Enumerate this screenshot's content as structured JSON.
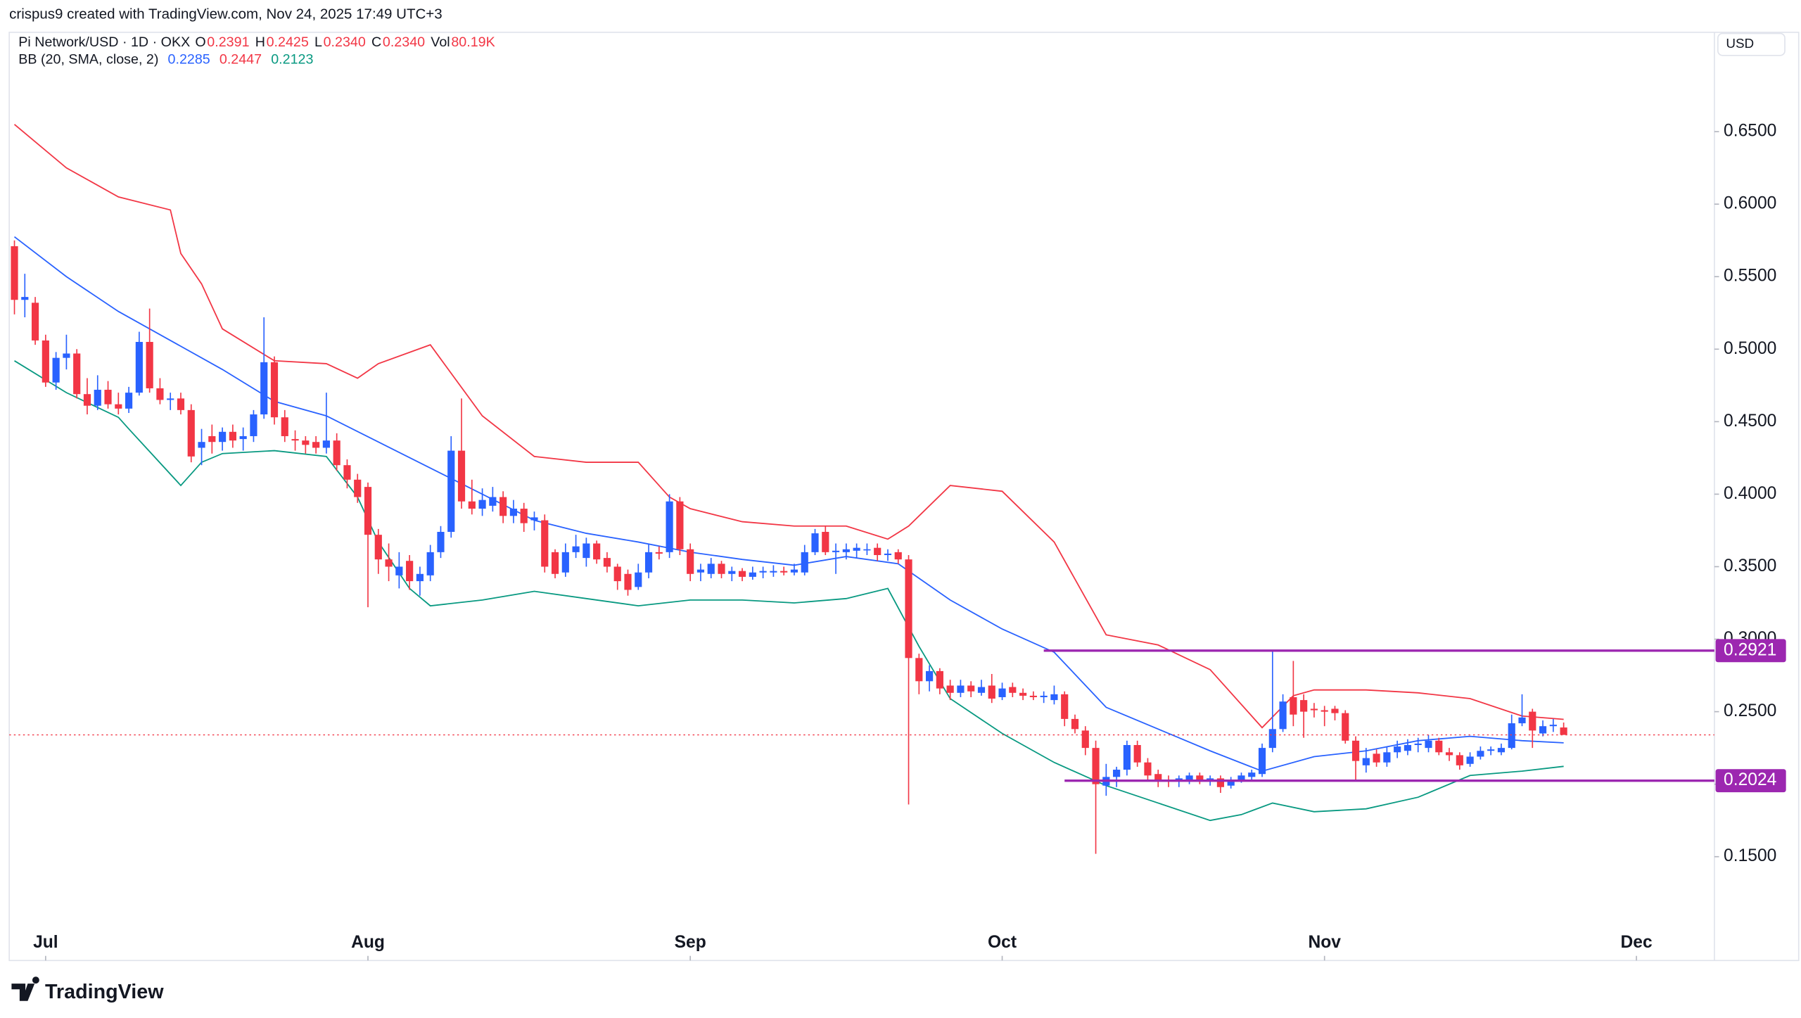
{
  "header": {
    "credit": "crispus9 created with TradingView.com, Nov 24, 2025 17:49 UTC+3",
    "symbol": "Pi Network/USD · 1D · OKX",
    "ohlc": [
      {
        "label": "O",
        "value": "0.2391"
      },
      {
        "label": "H",
        "value": "0.2425"
      },
      {
        "label": "L",
        "value": "0.2340"
      },
      {
        "label": "C",
        "value": "0.2340"
      },
      {
        "label": "Vol",
        "value": "80.19K"
      }
    ],
    "indicator": {
      "label": "BB (20, SMA, close, 2)",
      "values": [
        0.2285,
        0.2447,
        0.2123
      ]
    },
    "currency": "USD",
    "brand": "TradingView"
  },
  "chart_data": {
    "type": "candlestick",
    "up_color": "#2962ff",
    "down_color": "#f23645",
    "open": [
      0.571,
      0.534,
      0.532,
      0.506,
      0.477,
      0.494,
      0.497,
      0.469,
      0.461,
      0.472,
      0.462,
      0.459,
      0.47,
      0.505,
      0.473,
      0.465,
      0.466,
      0.458,
      0.432,
      0.44,
      0.436,
      0.443,
      0.438,
      0.44,
      0.455,
      0.491,
      0.453,
      0.438,
      0.437,
      0.436,
      0.432,
      0.437,
      0.42,
      0.41,
      0.405,
      0.372,
      0.355,
      0.344,
      0.354,
      0.34,
      0.344,
      0.36,
      0.374,
      0.43,
      0.395,
      0.39,
      0.392,
      0.398,
      0.385,
      0.39,
      0.382,
      0.382,
      0.36,
      0.346,
      0.36,
      0.356,
      0.366,
      0.356,
      0.35,
      0.345,
      0.336,
      0.346,
      0.36,
      0.36,
      0.395,
      0.362,
      0.346,
      0.345,
      0.352,
      0.345,
      0.347,
      0.343,
      0.346,
      0.346,
      0.347,
      0.346,
      0.346,
      0.36,
      0.374,
      0.36,
      0.36,
      0.361,
      0.362,
      0.363,
      0.358,
      0.36,
      0.355,
      0.287,
      0.271,
      0.278,
      0.268,
      0.263,
      0.268,
      0.263,
      0.268,
      0.26,
      0.267,
      0.263,
      0.261,
      0.26,
      0.258,
      0.262,
      0.245,
      0.237,
      0.225,
      0.199,
      0.205,
      0.21,
      0.227,
      0.215,
      0.207,
      0.203,
      0.202,
      0.202,
      0.206,
      0.203,
      0.204,
      0.199,
      0.203,
      0.205,
      0.207,
      0.225,
      0.238,
      0.26,
      0.258,
      0.252,
      0.251,
      0.252,
      0.249,
      0.23,
      0.213,
      0.221,
      0.215,
      0.222,
      0.223,
      0.227,
      0.225,
      0.23,
      0.222,
      0.22,
      0.214,
      0.219,
      0.223,
      0.222,
      0.225,
      0.242,
      0.25,
      0.235,
      0.24,
      0.2391
    ],
    "high": [
      0.575,
      0.552,
      0.536,
      0.51,
      0.498,
      0.51,
      0.5,
      0.48,
      0.482,
      0.478,
      0.47,
      0.474,
      0.512,
      0.528,
      0.48,
      0.47,
      0.47,
      0.462,
      0.445,
      0.448,
      0.446,
      0.448,
      0.446,
      0.458,
      0.522,
      0.495,
      0.458,
      0.444,
      0.44,
      0.44,
      0.47,
      0.442,
      0.424,
      0.414,
      0.408,
      0.376,
      0.366,
      0.36,
      0.358,
      0.35,
      0.365,
      0.378,
      0.44,
      0.466,
      0.41,
      0.404,
      0.405,
      0.402,
      0.396,
      0.394,
      0.388,
      0.386,
      0.362,
      0.366,
      0.372,
      0.37,
      0.368,
      0.36,
      0.352,
      0.348,
      0.352,
      0.366,
      0.364,
      0.4,
      0.398,
      0.366,
      0.352,
      0.356,
      0.354,
      0.35,
      0.349,
      0.35,
      0.35,
      0.351,
      0.35,
      0.352,
      0.365,
      0.376,
      0.378,
      0.366,
      0.366,
      0.366,
      0.366,
      0.366,
      0.362,
      0.362,
      0.358,
      0.29,
      0.282,
      0.28,
      0.272,
      0.272,
      0.271,
      0.272,
      0.276,
      0.27,
      0.27,
      0.266,
      0.264,
      0.264,
      0.268,
      0.264,
      0.248,
      0.24,
      0.23,
      0.214,
      0.212,
      0.23,
      0.23,
      0.218,
      0.21,
      0.206,
      0.206,
      0.208,
      0.208,
      0.206,
      0.206,
      0.205,
      0.208,
      0.21,
      0.228,
      0.292,
      0.262,
      0.285,
      0.262,
      0.256,
      0.254,
      0.254,
      0.251,
      0.233,
      0.225,
      0.224,
      0.226,
      0.23,
      0.231,
      0.232,
      0.234,
      0.232,
      0.225,
      0.222,
      0.222,
      0.226,
      0.226,
      0.228,
      0.248,
      0.262,
      0.252,
      0.244,
      0.245,
      0.2425
    ],
    "low": [
      0.524,
      0.522,
      0.503,
      0.474,
      0.472,
      0.486,
      0.466,
      0.455,
      0.458,
      0.459,
      0.455,
      0.456,
      0.468,
      0.47,
      0.462,
      0.458,
      0.455,
      0.422,
      0.42,
      0.428,
      0.43,
      0.432,
      0.43,
      0.436,
      0.452,
      0.448,
      0.436,
      0.43,
      0.428,
      0.428,
      0.428,
      0.416,
      0.404,
      0.394,
      0.322,
      0.345,
      0.34,
      0.335,
      0.334,
      0.33,
      0.34,
      0.356,
      0.37,
      0.39,
      0.386,
      0.385,
      0.388,
      0.38,
      0.38,
      0.374,
      0.375,
      0.346,
      0.342,
      0.343,
      0.356,
      0.35,
      0.352,
      0.346,
      0.334,
      0.33,
      0.334,
      0.342,
      0.355,
      0.356,
      0.358,
      0.34,
      0.34,
      0.342,
      0.342,
      0.34,
      0.34,
      0.341,
      0.342,
      0.343,
      0.344,
      0.344,
      0.344,
      0.358,
      0.358,
      0.345,
      0.355,
      0.356,
      0.358,
      0.354,
      0.354,
      0.352,
      0.186,
      0.262,
      0.264,
      0.262,
      0.258,
      0.26,
      0.26,
      0.261,
      0.256,
      0.258,
      0.26,
      0.258,
      0.258,
      0.256,
      0.255,
      0.24,
      0.235,
      0.22,
      0.152,
      0.192,
      0.198,
      0.206,
      0.212,
      0.202,
      0.198,
      0.198,
      0.198,
      0.2,
      0.2,
      0.199,
      0.194,
      0.197,
      0.201,
      0.203,
      0.205,
      0.222,
      0.236,
      0.24,
      0.232,
      0.246,
      0.24,
      0.244,
      0.228,
      0.203,
      0.208,
      0.212,
      0.212,
      0.218,
      0.22,
      0.222,
      0.222,
      0.22,
      0.216,
      0.21,
      0.212,
      0.217,
      0.22,
      0.22,
      0.224,
      0.24,
      0.225,
      0.233,
      0.236,
      0.234
    ],
    "close": [
      0.534,
      0.536,
      0.506,
      0.477,
      0.494,
      0.497,
      0.469,
      0.461,
      0.472,
      0.462,
      0.459,
      0.47,
      0.505,
      0.473,
      0.465,
      0.466,
      0.458,
      0.426,
      0.436,
      0.436,
      0.443,
      0.437,
      0.44,
      0.455,
      0.491,
      0.453,
      0.44,
      0.437,
      0.434,
      0.432,
      0.437,
      0.42,
      0.41,
      0.398,
      0.372,
      0.355,
      0.35,
      0.35,
      0.34,
      0.345,
      0.36,
      0.374,
      0.43,
      0.395,
      0.39,
      0.396,
      0.398,
      0.385,
      0.39,
      0.38,
      0.384,
      0.35,
      0.345,
      0.36,
      0.364,
      0.366,
      0.355,
      0.35,
      0.34,
      0.334,
      0.346,
      0.36,
      0.359,
      0.395,
      0.362,
      0.345,
      0.348,
      0.352,
      0.345,
      0.347,
      0.343,
      0.346,
      0.347,
      0.347,
      0.346,
      0.348,
      0.36,
      0.373,
      0.36,
      0.361,
      0.362,
      0.363,
      0.362,
      0.358,
      0.359,
      0.355,
      0.287,
      0.271,
      0.278,
      0.266,
      0.263,
      0.268,
      0.264,
      0.267,
      0.259,
      0.266,
      0.263,
      0.261,
      0.26,
      0.261,
      0.262,
      0.245,
      0.238,
      0.225,
      0.2,
      0.205,
      0.21,
      0.227,
      0.215,
      0.206,
      0.203,
      0.202,
      0.204,
      0.206,
      0.203,
      0.204,
      0.198,
      0.203,
      0.206,
      0.208,
      0.225,
      0.238,
      0.257,
      0.248,
      0.25,
      0.251,
      0.25,
      0.249,
      0.23,
      0.216,
      0.218,
      0.215,
      0.222,
      0.226,
      0.227,
      0.228,
      0.23,
      0.222,
      0.22,
      0.213,
      0.219,
      0.223,
      0.224,
      0.225,
      0.242,
      0.246,
      0.237,
      0.24,
      0.241,
      0.234
    ],
    "series": [
      {
        "color": "#f23645",
        "x": [
          0,
          5,
          10,
          15,
          16,
          18,
          20,
          25,
          30,
          33,
          35,
          40,
          45,
          50,
          55,
          60,
          63,
          65,
          70,
          75,
          80,
          84,
          86,
          90,
          95,
          100,
          105,
          110,
          115,
          120,
          123,
          125,
          130,
          135,
          140,
          145,
          149
        ],
        "values": [
          0.655,
          0.625,
          0.605,
          0.596,
          0.566,
          0.545,
          0.514,
          0.492,
          0.49,
          0.48,
          0.49,
          0.503,
          0.454,
          0.426,
          0.422,
          0.422,
          0.398,
          0.39,
          0.381,
          0.378,
          0.378,
          0.369,
          0.378,
          0.406,
          0.402,
          0.367,
          0.303,
          0.296,
          0.279,
          0.239,
          0.261,
          0.265,
          0.265,
          0.263,
          0.259,
          0.247,
          0.2447
        ]
      },
      {
        "color": "#2962ff",
        "x": [
          0,
          5,
          10,
          15,
          20,
          25,
          30,
          35,
          40,
          45,
          50,
          55,
          60,
          65,
          70,
          75,
          80,
          85,
          90,
          95,
          100,
          105,
          110,
          115,
          120,
          125,
          130,
          135,
          140,
          145,
          149
        ],
        "values": [
          0.5775,
          0.55,
          0.526,
          0.506,
          0.486,
          0.464,
          0.454,
          0.436,
          0.418,
          0.4,
          0.382,
          0.373,
          0.367,
          0.36,
          0.355,
          0.351,
          0.357,
          0.352,
          0.327,
          0.307,
          0.291,
          0.253,
          0.238,
          0.223,
          0.209,
          0.219,
          0.223,
          0.23,
          0.233,
          0.23,
          0.2285
        ]
      },
      {
        "color": "#089981",
        "x": [
          0,
          5,
          10,
          11,
          16,
          18,
          20,
          25,
          30,
          33,
          35,
          38,
          40,
          45,
          50,
          55,
          60,
          65,
          70,
          75,
          80,
          84,
          87,
          90,
          95,
          100,
          105,
          110,
          115,
          118,
          121,
          125,
          130,
          135,
          140,
          145,
          149
        ],
        "values": [
          0.492,
          0.47,
          0.453,
          0.445,
          0.406,
          0.422,
          0.428,
          0.43,
          0.426,
          0.398,
          0.367,
          0.335,
          0.323,
          0.327,
          0.333,
          0.328,
          0.323,
          0.327,
          0.327,
          0.325,
          0.328,
          0.335,
          0.295,
          0.259,
          0.235,
          0.215,
          0.199,
          0.187,
          0.175,
          0.179,
          0.187,
          0.181,
          0.183,
          0.191,
          0.206,
          0.209,
          0.2123
        ]
      }
    ],
    "levels": [
      {
        "value": 0.2921,
        "from_x": 99,
        "color": "#9c27b0"
      },
      {
        "value": 0.2024,
        "from_x": 101,
        "color": "#9c27b0"
      }
    ],
    "xlim": [
      -0.5,
      163.5
    ],
    "xticks": [
      {
        "value": 3,
        "label": "Jul"
      },
      {
        "value": 34,
        "label": "Aug"
      },
      {
        "value": 65,
        "label": "Sep"
      },
      {
        "value": 95,
        "label": "Oct"
      },
      {
        "value": 126,
        "label": "Nov"
      },
      {
        "value": 156,
        "label": "Dec"
      }
    ],
    "ylim": [
      0.0784,
      0.7185
    ],
    "yticks": [
      {
        "value": 0.15,
        "label": "0.1500"
      },
      {
        "value": 0.2,
        "label": "0.2000"
      },
      {
        "value": 0.25,
        "label": "0.2500"
      },
      {
        "value": 0.3,
        "label": "0.3000"
      },
      {
        "value": 0.35,
        "label": "0.3500"
      },
      {
        "value": 0.4,
        "label": "0.4000"
      },
      {
        "value": 0.45,
        "label": "0.4500"
      },
      {
        "value": 0.5,
        "label": "0.5000"
      },
      {
        "value": 0.55,
        "label": "0.5500"
      },
      {
        "value": 0.6,
        "label": "0.6000"
      },
      {
        "value": 0.65,
        "label": "0.6500"
      }
    ]
  }
}
